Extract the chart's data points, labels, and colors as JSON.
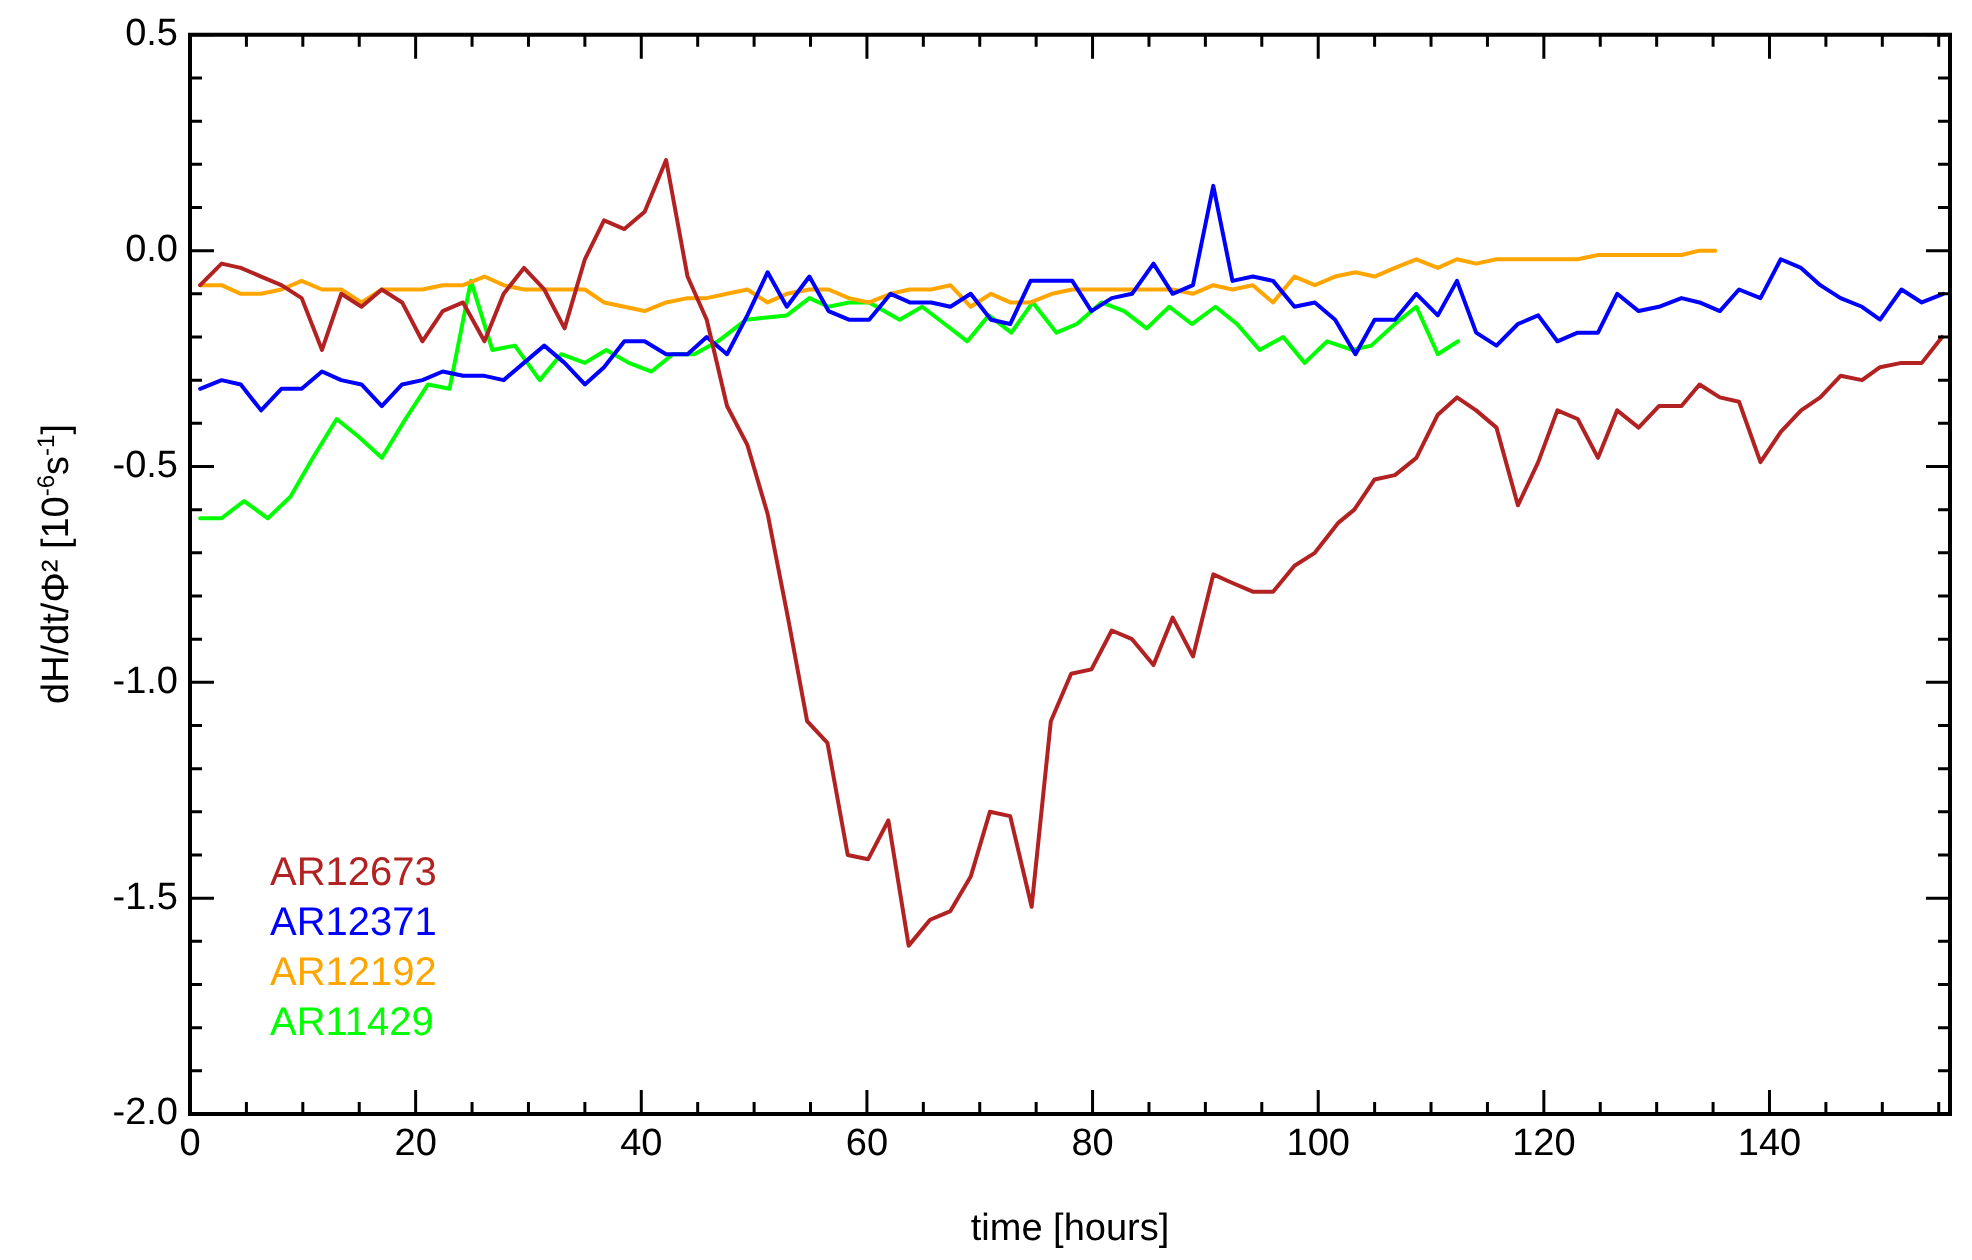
{
  "chart_data": {
    "type": "line",
    "xlabel": "time [hours]",
    "ylabel": "dH/dt/Φ² [10$^{-6}$s$^{-1}$]",
    "xlim": [
      0,
      156
    ],
    "ylim": [
      -2.0,
      0.5
    ],
    "xticks": [
      0,
      {
        "value": 5,
        "label": null
      },
      {
        "value": 10,
        "label": null
      },
      {
        "value": 15,
        "label": null
      },
      20,
      {
        "value": 25,
        "label": null
      },
      {
        "value": 30,
        "label": null
      },
      {
        "value": 35,
        "label": null
      },
      40,
      {
        "value": 45,
        "label": null
      },
      {
        "value": 50,
        "label": null
      },
      {
        "value": 55,
        "label": null
      },
      60,
      {
        "value": 65,
        "label": null
      },
      {
        "value": 70,
        "label": null
      },
      {
        "value": 75,
        "label": null
      },
      80,
      {
        "value": 85,
        "label": null
      },
      {
        "value": 90,
        "label": null
      },
      {
        "value": 95,
        "label": null
      },
      100,
      {
        "value": 105,
        "label": null
      },
      {
        "value": 110,
        "label": null
      },
      {
        "value": 115,
        "label": null
      },
      120,
      {
        "value": 125,
        "label": null
      },
      {
        "value": 130,
        "label": null
      },
      {
        "value": 135,
        "label": null
      },
      140,
      {
        "value": 145,
        "label": null
      },
      {
        "value": 150,
        "label": null
      },
      {
        "value": 155,
        "label": null
      }
    ],
    "yticks": [
      0.5,
      {
        "value": 0.4,
        "label": null
      },
      {
        "value": 0.3,
        "label": null
      },
      {
        "value": 0.2,
        "label": null
      },
      {
        "value": 0.1,
        "label": null
      },
      {
        "value": 0,
        "label": "0.0"
      },
      {
        "value": -0.1,
        "label": null
      },
      {
        "value": -0.2,
        "label": null
      },
      {
        "value": -0.3,
        "label": null
      },
      {
        "value": -0.4,
        "label": null
      },
      -0.5,
      {
        "value": -0.6,
        "label": null
      },
      {
        "value": -0.7,
        "label": null
      },
      {
        "value": -0.8,
        "label": null
      },
      {
        "value": -0.9,
        "label": null
      },
      {
        "value": -1,
        "label": "-1.0"
      },
      {
        "value": -1.1,
        "label": null
      },
      {
        "value": -1.2,
        "label": null
      },
      {
        "value": -1.3,
        "label": null
      },
      {
        "value": -1.4,
        "label": null
      },
      -1.5,
      {
        "value": -1.6,
        "label": null
      },
      {
        "value": -1.7,
        "label": null
      },
      {
        "value": -1.8,
        "label": null
      },
      {
        "value": -1.9,
        "label": null
      },
      {
        "value": -2,
        "label": "-2.0"
      }
    ],
    "grid": false,
    "legend": "bottom left",
    "series": [
      {
        "name": "AR12673",
        "color": "#b22222",
        "x": [
          0.9,
          2.8,
          4.5,
          6.3,
          8.1,
          9.9,
          11.7,
          13.4,
          15.2,
          17.0,
          18.8,
          20.6,
          22.4,
          24.2,
          26.1,
          27.8,
          29.6,
          31.4,
          33.2,
          35.0,
          36.7,
          38.5,
          40.3,
          42.2,
          44.1,
          45.8,
          47.6,
          49.4,
          51.2,
          53.0,
          54.7,
          56.5,
          58.3,
          60.1,
          61.9,
          63.7,
          65.6,
          67.4,
          69.2,
          70.9,
          72.7,
          74.6,
          76.3,
          78.1,
          79.9,
          81.7,
          83.5,
          85.4,
          87.1,
          88.9,
          90.7,
          92.4,
          94.2,
          96.0,
          97.9,
          99.7,
          101.8,
          103.2,
          105.0,
          106.8,
          108.7,
          110.6,
          112.3,
          114.0,
          115.8,
          117.7,
          119.5,
          121.2,
          123.0,
          124.8,
          126.5,
          128.4,
          130.2,
          132.2,
          133.8,
          135.6,
          137.3,
          139.2,
          141.0,
          142.8,
          144.5,
          146.3,
          148.2,
          149.8,
          151.7,
          153.5,
          155.3
        ],
        "values": [
          -0.08,
          -0.03,
          -0.04,
          -0.06,
          -0.08,
          -0.11,
          -0.23,
          -0.1,
          -0.13,
          -0.09,
          -0.12,
          -0.21,
          -0.14,
          -0.12,
          -0.21,
          -0.1,
          -0.04,
          -0.09,
          -0.18,
          -0.02,
          0.07,
          0.05,
          0.09,
          0.21,
          -0.06,
          -0.16,
          -0.36,
          -0.45,
          -0.61,
          -0.85,
          -1.09,
          -1.14,
          -1.4,
          -1.41,
          -1.32,
          -1.61,
          -1.55,
          -1.53,
          -1.45,
          -1.3,
          -1.31,
          -1.52,
          -1.09,
          -0.98,
          -0.97,
          -0.88,
          -0.9,
          -0.96,
          -0.85,
          -0.94,
          -0.75,
          -0.77,
          -0.79,
          -0.79,
          -0.73,
          -0.7,
          -0.63,
          -0.6,
          -0.53,
          -0.52,
          -0.48,
          -0.38,
          -0.34,
          -0.37,
          -0.41,
          -0.59,
          -0.49,
          -0.37,
          -0.39,
          -0.48,
          -0.37,
          -0.41,
          -0.36,
          -0.36,
          -0.31,
          -0.34,
          -0.35,
          -0.49,
          -0.42,
          -0.37,
          -0.34,
          -0.29,
          -0.3,
          -0.27,
          -0.26,
          -0.26,
          -0.2
        ]
      },
      {
        "name": "AR12371",
        "color": "#0000ff",
        "x": [
          0.9,
          2.8,
          4.5,
          6.3,
          8.1,
          9.9,
          11.7,
          13.4,
          15.2,
          17.0,
          18.8,
          20.6,
          22.4,
          24.2,
          26.1,
          27.8,
          29.6,
          31.4,
          33.2,
          35.0,
          36.7,
          38.5,
          40.3,
          42.2,
          44.1,
          45.8,
          47.6,
          49.4,
          51.2,
          52.9,
          54.9,
          56.6,
          58.4,
          60.2,
          62.1,
          63.8,
          65.7,
          67.4,
          69.2,
          71.0,
          72.7,
          74.5,
          76.4,
          78.2,
          79.9,
          81.7,
          83.5,
          85.4,
          87.1,
          88.9,
          90.7,
          92.4,
          94.2,
          96.0,
          97.9,
          99.7,
          101.5,
          103.3,
          105.0,
          106.8,
          108.7,
          110.6,
          112.3,
          114.0,
          115.8,
          117.7,
          119.5,
          121.2,
          123.0,
          124.8,
          126.5,
          128.4,
          130.2,
          132.2,
          133.8,
          135.6,
          137.3,
          139.2,
          141.0,
          142.8,
          144.5,
          146.3,
          148.2,
          149.8,
          151.7,
          153.5,
          155.4
        ],
        "values": [
          -0.32,
          -0.3,
          -0.31,
          -0.37,
          -0.32,
          -0.32,
          -0.28,
          -0.3,
          -0.31,
          -0.36,
          -0.31,
          -0.3,
          -0.28,
          -0.29,
          -0.29,
          -0.3,
          -0.26,
          -0.22,
          -0.26,
          -0.31,
          -0.27,
          -0.21,
          -0.21,
          -0.24,
          -0.24,
          -0.2,
          -0.24,
          -0.15,
          -0.05,
          -0.13,
          -0.06,
          -0.14,
          -0.16,
          -0.16,
          -0.1,
          -0.12,
          -0.12,
          -0.13,
          -0.1,
          -0.16,
          -0.17,
          -0.07,
          -0.07,
          -0.07,
          -0.14,
          -0.11,
          -0.1,
          -0.03,
          -0.1,
          -0.08,
          0.15,
          -0.07,
          -0.06,
          -0.07,
          -0.13,
          -0.12,
          -0.16,
          -0.24,
          -0.16,
          -0.16,
          -0.1,
          -0.15,
          -0.07,
          -0.19,
          -0.22,
          -0.17,
          -0.15,
          -0.21,
          -0.19,
          -0.19,
          -0.1,
          -0.14,
          -0.13,
          -0.11,
          -0.12,
          -0.14,
          -0.09,
          -0.11,
          -0.02,
          -0.04,
          -0.08,
          -0.11,
          -0.13,
          -0.16,
          -0.09,
          -0.12,
          -0.1
        ]
      },
      {
        "name": "AR12192",
        "color": "#ffa500",
        "x": [
          0.9,
          2.8,
          4.5,
          6.3,
          8.1,
          9.9,
          11.7,
          13.4,
          15.2,
          17.0,
          18.8,
          20.6,
          22.4,
          24.2,
          26.1,
          27.8,
          29.6,
          31.4,
          33.2,
          35.0,
          36.7,
          38.5,
          40.3,
          42.2,
          44.1,
          45.8,
          47.6,
          49.4,
          51.2,
          52.9,
          54.9,
          56.6,
          58.4,
          60.2,
          62.1,
          63.8,
          65.7,
          67.4,
          69.2,
          71.0,
          72.7,
          74.5,
          76.4,
          78.2,
          79.9,
          81.7,
          83.5,
          85.4,
          87.1,
          88.9,
          90.7,
          92.4,
          94.2,
          96.0,
          97.9,
          99.7,
          101.5,
          103.3,
          105.0,
          106.8,
          108.7,
          110.6,
          112.3,
          114.0,
          115.8,
          117.7,
          119.5,
          121.2,
          123.0,
          124.8,
          126.5,
          128.4,
          130.2,
          132.2,
          133.8,
          135.2
        ],
        "values": [
          -0.08,
          -0.08,
          -0.1,
          -0.1,
          -0.09,
          -0.07,
          -0.09,
          -0.09,
          -0.12,
          -0.09,
          -0.09,
          -0.09,
          -0.08,
          -0.08,
          -0.06,
          -0.08,
          -0.09,
          -0.09,
          -0.09,
          -0.09,
          -0.12,
          -0.13,
          -0.14,
          -0.12,
          -0.11,
          -0.11,
          -0.1,
          -0.09,
          -0.12,
          -0.1,
          -0.09,
          -0.09,
          -0.11,
          -0.12,
          -0.1,
          -0.09,
          -0.09,
          -0.08,
          -0.13,
          -0.1,
          -0.12,
          -0.12,
          -0.1,
          -0.09,
          -0.09,
          -0.09,
          -0.09,
          -0.09,
          -0.09,
          -0.1,
          -0.08,
          -0.09,
          -0.08,
          -0.12,
          -0.06,
          -0.08,
          -0.06,
          -0.05,
          -0.06,
          -0.04,
          -0.02,
          -0.04,
          -0.02,
          -0.03,
          -0.02,
          -0.02,
          -0.02,
          -0.02,
          -0.02,
          -0.01,
          -0.01,
          -0.01,
          -0.01,
          -0.01,
          0.0,
          0.0
        ]
      },
      {
        "name": "AR11429",
        "color": "#00ff00",
        "x": [
          0.9,
          2.8,
          4.8,
          6.9,
          8.9,
          10.9,
          13.0,
          14.9,
          17.0,
          19.1,
          21.1,
          23.0,
          24.9,
          26.8,
          28.8,
          31.0,
          32.9,
          35.0,
          36.9,
          38.9,
          40.9,
          42.8,
          44.7,
          46.8,
          49.3,
          52.9,
          54.9,
          56.6,
          58.4,
          60.2,
          62.9,
          64.9,
          66.9,
          68.9,
          70.8,
          72.8,
          74.7,
          76.8,
          78.6,
          80.8,
          82.8,
          84.8,
          86.8,
          88.8,
          90.9,
          92.8,
          94.8,
          96.9,
          98.8,
          100.8,
          103.0,
          104.7,
          106.8,
          108.7,
          110.6,
          112.4
        ],
        "values": [
          -0.62,
          -0.62,
          -0.58,
          -0.62,
          -0.57,
          -0.48,
          -0.39,
          -0.43,
          -0.48,
          -0.39,
          -0.31,
          -0.32,
          -0.07,
          -0.23,
          -0.22,
          -0.3,
          -0.24,
          -0.26,
          -0.23,
          -0.26,
          -0.28,
          -0.24,
          -0.24,
          -0.21,
          -0.16,
          -0.15,
          -0.11,
          -0.13,
          -0.12,
          -0.12,
          -0.16,
          -0.13,
          -0.17,
          -0.21,
          -0.15,
          -0.19,
          -0.12,
          -0.19,
          -0.17,
          -0.12,
          -0.14,
          -0.18,
          -0.13,
          -0.17,
          -0.13,
          -0.17,
          -0.23,
          -0.2,
          -0.26,
          -0.21,
          -0.23,
          -0.22,
          -0.17,
          -0.13,
          -0.24,
          -0.21
        ]
      }
    ]
  }
}
